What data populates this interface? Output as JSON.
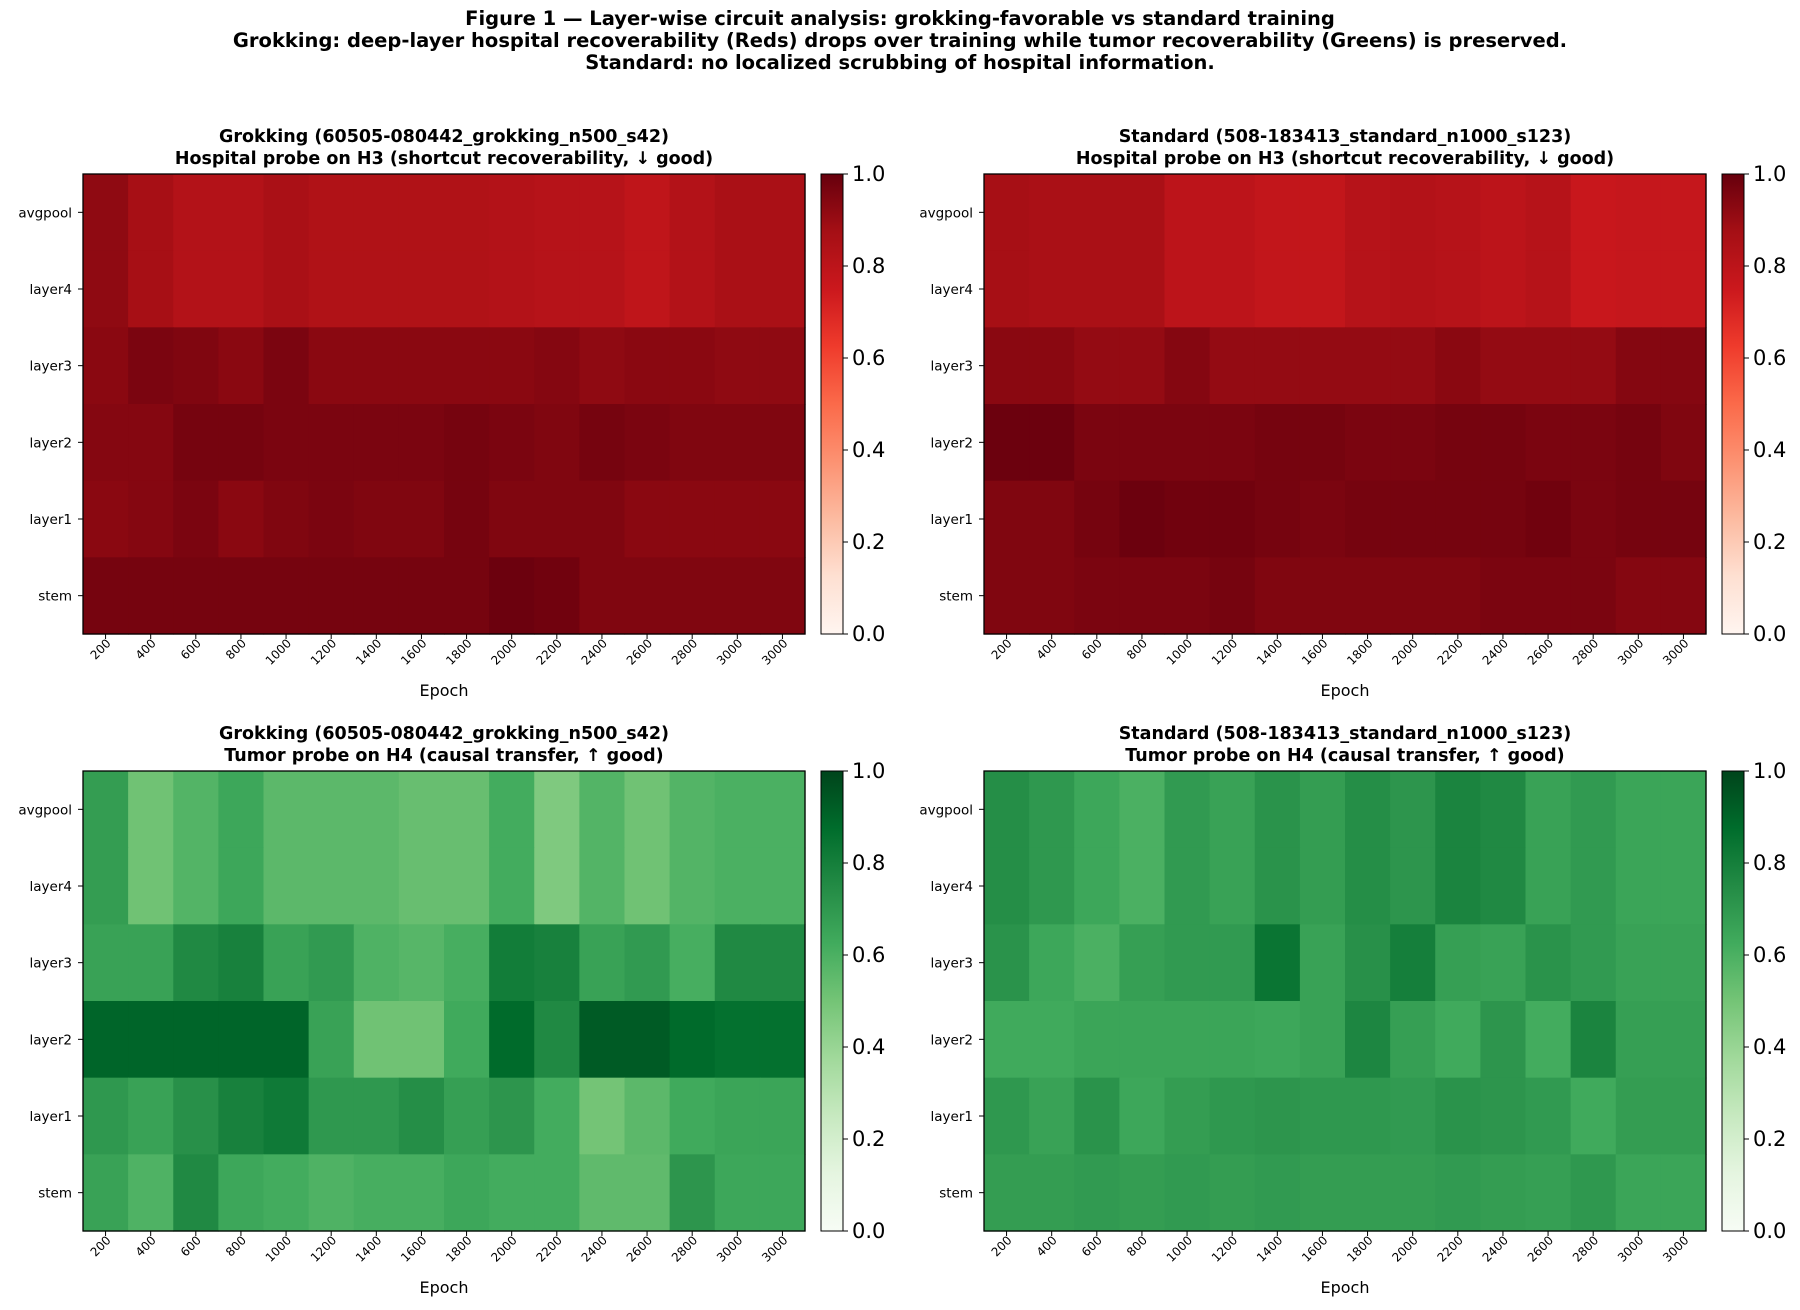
{
  "figure": {
    "suptitle": [
      "Figure 1 — Layer-wise circuit analysis: grokking-favorable vs standard training",
      "Grokking: deep-layer hospital recoverability (Reds) drops over training while tumor recoverability (Greens) is preserved.",
      "Standard: no localized scrubbing of hospital information."
    ]
  },
  "chart_data": [
    {
      "type": "heatmap",
      "title": "Grokking (60505-080442_grokking_n500_s42)",
      "subtitle": "Hospital probe on H3 (shortcut recoverability, ↓ good)",
      "colormap": "Reds",
      "xlabel": "Epoch",
      "x": [
        "200",
        "400",
        "600",
        "800",
        "1000",
        "1200",
        "1400",
        "1600",
        "1800",
        "2000",
        "2200",
        "2400",
        "2600",
        "2800",
        "3000",
        "3000"
      ],
      "y": [
        "avgpool",
        "layer4",
        "layer3",
        "layer2",
        "layer1",
        "stem"
      ],
      "clim": [
        0,
        1
      ],
      "colorbar_ticks": [
        "0.0",
        "0.2",
        "0.4",
        "0.6",
        "0.8",
        "1.0"
      ],
      "values": [
        [
          0.92,
          0.87,
          0.83,
          0.83,
          0.86,
          0.84,
          0.84,
          0.84,
          0.84,
          0.83,
          0.82,
          0.82,
          0.79,
          0.83,
          0.86,
          0.86
        ],
        [
          0.92,
          0.87,
          0.83,
          0.83,
          0.86,
          0.84,
          0.84,
          0.84,
          0.84,
          0.83,
          0.82,
          0.82,
          0.79,
          0.83,
          0.86,
          0.86
        ],
        [
          0.93,
          0.96,
          0.95,
          0.93,
          0.96,
          0.93,
          0.93,
          0.93,
          0.93,
          0.93,
          0.94,
          0.92,
          0.93,
          0.93,
          0.92,
          0.92
        ],
        [
          0.94,
          0.94,
          0.97,
          0.97,
          0.96,
          0.96,
          0.96,
          0.96,
          0.97,
          0.96,
          0.95,
          0.97,
          0.96,
          0.95,
          0.95,
          0.95
        ],
        [
          0.93,
          0.94,
          0.96,
          0.93,
          0.95,
          0.96,
          0.95,
          0.95,
          0.97,
          0.95,
          0.95,
          0.95,
          0.93,
          0.93,
          0.93,
          0.93
        ],
        [
          0.97,
          0.97,
          0.97,
          0.97,
          0.97,
          0.97,
          0.97,
          0.97,
          0.97,
          0.99,
          0.98,
          0.95,
          0.95,
          0.95,
          0.95,
          0.95
        ]
      ]
    },
    {
      "type": "heatmap",
      "title": "Standard (508-183413_standard_n1000_s123)",
      "subtitle": "Hospital probe on H3 (shortcut recoverability, ↓ good)",
      "colormap": "Reds",
      "xlabel": "Epoch",
      "x": [
        "200",
        "400",
        "600",
        "800",
        "1000",
        "1200",
        "1400",
        "1600",
        "1800",
        "2000",
        "2200",
        "2400",
        "2600",
        "2800",
        "3000",
        "3000"
      ],
      "y": [
        "avgpool",
        "layer4",
        "layer3",
        "layer2",
        "layer1",
        "stem"
      ],
      "clim": [
        0,
        1
      ],
      "colorbar_ticks": [
        "0.0",
        "0.2",
        "0.4",
        "0.6",
        "0.8",
        "1.0"
      ],
      "values": [
        [
          0.87,
          0.86,
          0.86,
          0.86,
          0.8,
          0.8,
          0.78,
          0.78,
          0.82,
          0.83,
          0.82,
          0.8,
          0.82,
          0.76,
          0.77,
          0.77
        ],
        [
          0.87,
          0.86,
          0.86,
          0.86,
          0.8,
          0.8,
          0.78,
          0.78,
          0.82,
          0.83,
          0.82,
          0.8,
          0.82,
          0.76,
          0.77,
          0.77
        ],
        [
          0.93,
          0.93,
          0.91,
          0.91,
          0.94,
          0.91,
          0.91,
          0.91,
          0.91,
          0.91,
          0.93,
          0.91,
          0.91,
          0.91,
          0.94,
          0.94
        ],
        [
          0.99,
          0.99,
          0.96,
          0.96,
          0.96,
          0.96,
          0.97,
          0.97,
          0.96,
          0.96,
          0.97,
          0.97,
          0.96,
          0.96,
          0.97,
          0.95
        ],
        [
          0.95,
          0.95,
          0.97,
          0.99,
          0.98,
          0.98,
          0.97,
          0.96,
          0.97,
          0.97,
          0.97,
          0.97,
          0.98,
          0.96,
          0.97,
          0.97
        ],
        [
          0.95,
          0.95,
          0.96,
          0.96,
          0.96,
          0.97,
          0.95,
          0.95,
          0.95,
          0.95,
          0.95,
          0.96,
          0.96,
          0.96,
          0.94,
          0.94
        ]
      ]
    },
    {
      "type": "heatmap",
      "title": "Grokking (60505-080442_grokking_n500_s42)",
      "subtitle": "Tumor probe on H4 (causal transfer, ↑ good)",
      "colormap": "Greens",
      "xlabel": "Epoch",
      "x": [
        "200",
        "400",
        "600",
        "800",
        "1000",
        "1200",
        "1400",
        "1600",
        "1800",
        "2000",
        "2200",
        "2400",
        "2600",
        "2800",
        "3000",
        "3000"
      ],
      "y": [
        "avgpool",
        "layer4",
        "layer3",
        "layer2",
        "layer1",
        "stem"
      ],
      "clim": [
        0,
        1
      ],
      "colorbar_ticks": [
        "0.0",
        "0.2",
        "0.4",
        "0.6",
        "0.8",
        "1.0"
      ],
      "values": [
        [
          0.68,
          0.51,
          0.58,
          0.64,
          0.56,
          0.56,
          0.56,
          0.53,
          0.53,
          0.62,
          0.47,
          0.58,
          0.51,
          0.58,
          0.6,
          0.6
        ],
        [
          0.68,
          0.51,
          0.58,
          0.64,
          0.56,
          0.56,
          0.56,
          0.53,
          0.53,
          0.62,
          0.47,
          0.58,
          0.51,
          0.58,
          0.6,
          0.6
        ],
        [
          0.66,
          0.66,
          0.76,
          0.79,
          0.66,
          0.69,
          0.59,
          0.57,
          0.61,
          0.81,
          0.79,
          0.66,
          0.69,
          0.61,
          0.76,
          0.76
        ],
        [
          0.9,
          0.9,
          0.9,
          0.9,
          0.9,
          0.66,
          0.51,
          0.51,
          0.63,
          0.88,
          0.76,
          0.93,
          0.93,
          0.88,
          0.86,
          0.86
        ],
        [
          0.7,
          0.66,
          0.73,
          0.79,
          0.82,
          0.7,
          0.7,
          0.74,
          0.67,
          0.71,
          0.62,
          0.5,
          0.56,
          0.63,
          0.65,
          0.65
        ],
        [
          0.66,
          0.59,
          0.76,
          0.64,
          0.62,
          0.59,
          0.61,
          0.61,
          0.64,
          0.62,
          0.62,
          0.55,
          0.55,
          0.71,
          0.64,
          0.64
        ]
      ]
    },
    {
      "type": "heatmap",
      "title": "Standard (508-183413_standard_n1000_s123)",
      "subtitle": "Tumor probe on H4 (causal transfer, ↑ good)",
      "colormap": "Greens",
      "xlabel": "Epoch",
      "x": [
        "200",
        "400",
        "600",
        "800",
        "1000",
        "1200",
        "1400",
        "1600",
        "1800",
        "2000",
        "2200",
        "2400",
        "2600",
        "2800",
        "3000",
        "3000"
      ],
      "y": [
        "avgpool",
        "layer4",
        "layer3",
        "layer2",
        "layer1",
        "stem"
      ],
      "clim": [
        0,
        1
      ],
      "colorbar_ticks": [
        "0.0",
        "0.2",
        "0.4",
        "0.6",
        "0.8",
        "1.0"
      ],
      "values": [
        [
          0.74,
          0.7,
          0.64,
          0.6,
          0.69,
          0.66,
          0.72,
          0.68,
          0.74,
          0.71,
          0.78,
          0.76,
          0.66,
          0.69,
          0.65,
          0.65
        ],
        [
          0.74,
          0.7,
          0.64,
          0.6,
          0.69,
          0.66,
          0.72,
          0.68,
          0.74,
          0.71,
          0.78,
          0.76,
          0.66,
          0.69,
          0.65,
          0.65
        ],
        [
          0.72,
          0.64,
          0.6,
          0.67,
          0.69,
          0.69,
          0.84,
          0.66,
          0.73,
          0.8,
          0.67,
          0.66,
          0.72,
          0.69,
          0.66,
          0.66
        ],
        [
          0.63,
          0.63,
          0.65,
          0.65,
          0.65,
          0.65,
          0.64,
          0.66,
          0.77,
          0.67,
          0.63,
          0.71,
          0.62,
          0.78,
          0.67,
          0.67
        ],
        [
          0.7,
          0.66,
          0.72,
          0.64,
          0.68,
          0.7,
          0.71,
          0.7,
          0.7,
          0.69,
          0.72,
          0.71,
          0.69,
          0.63,
          0.68,
          0.68
        ],
        [
          0.68,
          0.68,
          0.69,
          0.68,
          0.69,
          0.68,
          0.69,
          0.68,
          0.68,
          0.68,
          0.69,
          0.68,
          0.67,
          0.7,
          0.65,
          0.65
        ]
      ]
    }
  ]
}
